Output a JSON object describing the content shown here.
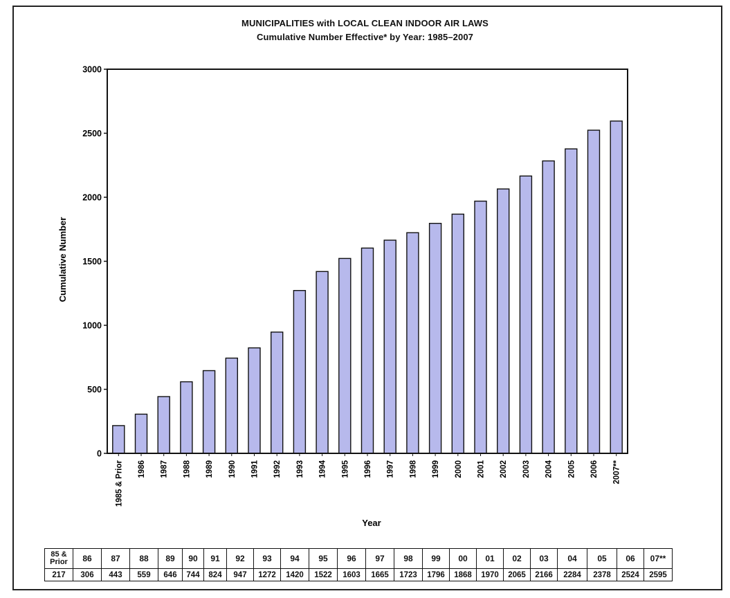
{
  "chart_data": {
    "type": "bar",
    "title": "MUNICIPALITIES with LOCAL CLEAN INDOOR AIR LAWS",
    "subtitle": "Cumulative Number Effective* by Year: 1985–2007",
    "xlabel": "Year",
    "ylabel": "Cumulative Number",
    "ylim": [
      0,
      3000
    ],
    "yticks": [
      0,
      500,
      1000,
      1500,
      2000,
      2500,
      3000
    ],
    "grid": false,
    "bar_color": "#b7b9ec",
    "bar_edge_color": "#111111",
    "categories": [
      "1985 & Prior",
      "1986",
      "1987",
      "1988",
      "1989",
      "1990",
      "1991",
      "1992",
      "1993",
      "1994",
      "1995",
      "1996",
      "1997",
      "1998",
      "1999",
      "2000",
      "2001",
      "2002",
      "2003",
      "2004",
      "2005",
      "2006",
      "2007**"
    ],
    "values": [
      217,
      306,
      443,
      559,
      646,
      744,
      824,
      947,
      1272,
      1420,
      1522,
      1603,
      1665,
      1723,
      1796,
      1868,
      1970,
      2065,
      2166,
      2284,
      2378,
      2524,
      2595
    ]
  },
  "table": {
    "headers": [
      "85 &\nPrior",
      "86",
      "87",
      "88",
      "89",
      "90",
      "91",
      "92",
      "93",
      "94",
      "95",
      "96",
      "97",
      "98",
      "99",
      "00",
      "01",
      "02",
      "03",
      "04",
      "05",
      "06",
      "07**"
    ],
    "values": [
      "217",
      "306",
      "443",
      "559",
      "646",
      "744",
      "824",
      "947",
      "1272",
      "1420",
      "1522",
      "1603",
      "1665",
      "1723",
      "1796",
      "1868",
      "1970",
      "2065",
      "2166",
      "2284",
      "2378",
      "2524",
      "2595"
    ]
  }
}
